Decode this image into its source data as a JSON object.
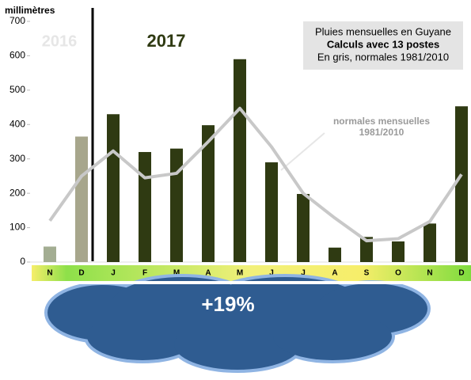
{
  "chart_data": {
    "type": "bar",
    "y_label": "millimètres",
    "year_labels": [
      "2016",
      "2017"
    ],
    "box_lines": [
      "Pluies mensuelles en Guyane",
      "Calculs avec 13 postes",
      "En gris, normales 1981/2010"
    ],
    "line_annotation": [
      "normales mensuelles",
      "1981/2010"
    ],
    "cloud_text": "+19%",
    "categories": [
      "N",
      "D",
      "J",
      "F",
      "M",
      "A",
      "M",
      "J",
      "J",
      "A",
      "S",
      "O",
      "N",
      "D"
    ],
    "values": [
      45,
      365,
      430,
      320,
      330,
      398,
      590,
      290,
      198,
      42,
      73,
      60,
      112,
      453
    ],
    "colors": [
      "#a3ad92",
      "#a7a68c",
      "#2f3a12",
      "#2f3a12",
      "#2f3a12",
      "#2f3a12",
      "#2f3a12",
      "#2f3a12",
      "#2f3a12",
      "#2f3a12",
      "#2f3a12",
      "#2f3a12",
      "#2f3a12",
      "#2f3a12"
    ],
    "line": {
      "values": [
        120,
        250,
        323,
        245,
        258,
        350,
        447,
        335,
        200,
        128,
        62,
        68,
        118,
        255
      ],
      "color": "#c8c8c8"
    },
    "ylim": [
      0,
      700
    ],
    "yticks": [
      0,
      100,
      200,
      300,
      400,
      500,
      600,
      700
    ]
  }
}
